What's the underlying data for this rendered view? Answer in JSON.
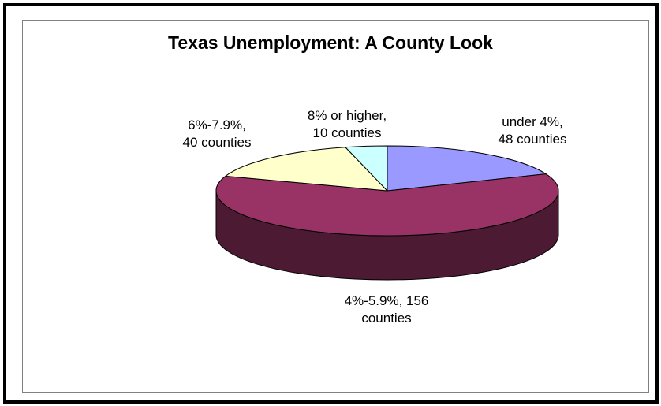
{
  "chart_data": {
    "type": "pie",
    "title": "Texas Unemployment: A County Look",
    "categories": [
      "under 4%",
      "4%-5.9%",
      "6%-7.9%",
      "8% or higher"
    ],
    "values": [
      48,
      156,
      40,
      10
    ],
    "unit": "counties",
    "labels": [
      {
        "line1": "under 4%,",
        "line2": "48 counties"
      },
      {
        "line1": "4%-5.9%, 156",
        "line2": "counties"
      },
      {
        "line1": "6%-7.9%,",
        "line2": "40 counties"
      },
      {
        "line1": "8% or higher,",
        "line2": "10 counties"
      }
    ],
    "colors": [
      "#9999FF",
      "#993366",
      "#FFFFCC",
      "#CCFFFF"
    ],
    "side_colors": [
      "#4D4D80",
      "#4D1A33",
      "#808066",
      "#668080"
    ],
    "legend": "none",
    "three_d": true
  }
}
